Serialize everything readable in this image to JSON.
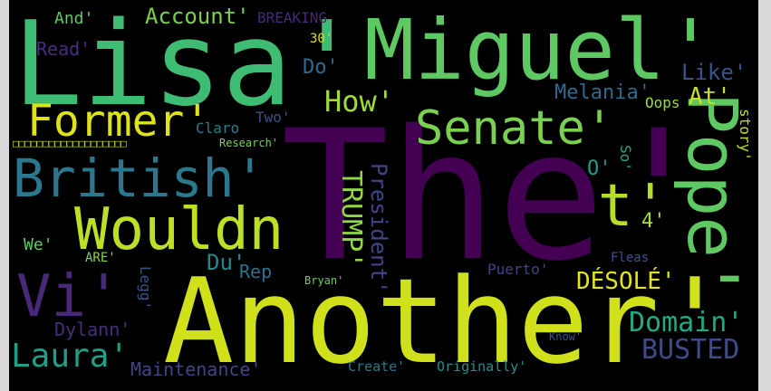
{
  "colors": {
    "background": "#000000",
    "frame": "#d9d9d9"
  },
  "words": {
    "lisa": "Lisa'",
    "miguel": "Miguel'",
    "the": "The'",
    "another": "Another'",
    "british": "British'",
    "wouldn": "Wouldn",
    "former": "Former'",
    "senate": "Senate'",
    "pope": "Pope'",
    "t": "t'",
    "vi": "Vi'",
    "laura": "Laura'",
    "busted": "BUSTED",
    "domain": "Domain'",
    "desole": "DÉSOLÉ'",
    "trump": "TRUMP'",
    "president": "President'",
    "how": "How'",
    "account": "Account'",
    "and": "And'",
    "breaking": "BREAKING",
    "read": "Read'",
    "do": "Do'",
    "like": "Like'",
    "melania": "Melania'",
    "at": "At'",
    "oops": "Oops",
    "story": "story'",
    "claro": "Claro",
    "two": "Two'",
    "research": "Research'",
    "so": "So'",
    "o": "O'",
    "four": "4'",
    "we": "We'",
    "are": "ARE'",
    "du": "Du'",
    "rep": "Rep",
    "legg": "Legg'",
    "fleas": "Fleas",
    "puerto": "Puerto'",
    "bryan": "Bryan'",
    "dylann": "Dylann'",
    "maintenance": "Maintenance'",
    "create": "Create'",
    "originally": "Originally'",
    "know": "Know'",
    "thirty": "30'",
    "boxes": "□□□□□□□□□□□□□□□□□□□"
  }
}
